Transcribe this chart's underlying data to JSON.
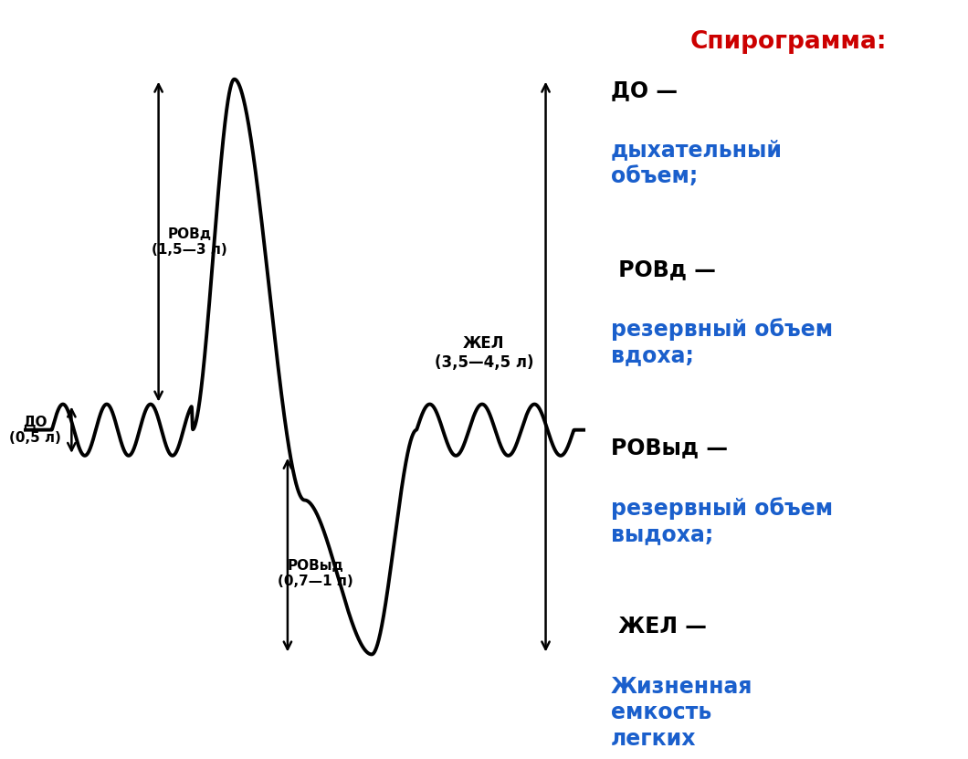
{
  "bg_color": "#ffffff",
  "line_color": "#000000",
  "title_color": "#cc0000",
  "black_color": "#000000",
  "blue_color": "#1a5fcc",
  "title_text": "Спирограмма:",
  "arrow_label_rovd": "РОВд\n(1,5—3 л)",
  "arrow_label_rovyd": "РОВыд\n(0,7—1 л)",
  "arrow_label_do": "ДО\n(0,5 л)",
  "arrow_label_zhel": "ЖЕЛ\n(3,5—4,5 л)",
  "legend_items": [
    {
      "label": "ДО —",
      "color_label": "#000000",
      "desc": "дыхательный\nобъем;",
      "color_desc": "#1a5fcc"
    },
    {
      "label": " РОВд —",
      "color_label": "#000000",
      "desc": "резервный объем\nвдоха;",
      "color_desc": "#1a5fcc"
    },
    {
      "label": "РОВыд —",
      "color_label": "#000000",
      "desc": "резервный объем\nвыдоха;",
      "color_desc": "#1a5fcc"
    },
    {
      "label": " ЖЕЛ —",
      "color_label": "#000000",
      "desc": "Жизненная\nемкость\nлегких",
      "color_desc": "#1a5fcc"
    }
  ]
}
